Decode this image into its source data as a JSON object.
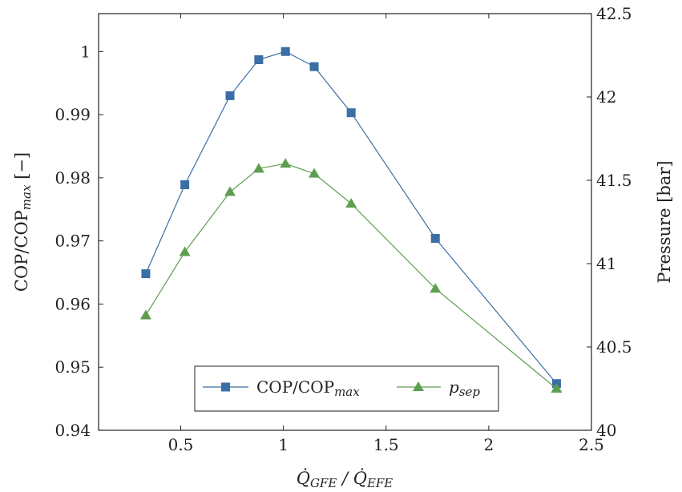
{
  "chart_data": {
    "type": "line",
    "xlabel": {
      "pre": "Q̇",
      "sub1": "GFE",
      "mid": " / Q̇",
      "sub2": "EFE"
    },
    "ylabel_left": {
      "main": "COP/COP",
      "sub": "max",
      "unit": " [−]"
    },
    "ylabel_right": "Pressure [bar]",
    "xlim": [
      0.1,
      2.5
    ],
    "ylim_left": [
      0.94,
      1.006
    ],
    "ylim_right": [
      40,
      42.5
    ],
    "x_ticks": [
      0.5,
      1,
      1.5,
      2,
      2.5
    ],
    "x_tick_labels": [
      "0.5",
      "1",
      "1.5",
      "2",
      "2.5"
    ],
    "y_left_ticks": [
      0.94,
      0.95,
      0.96,
      0.97,
      0.98,
      0.99,
      1.0
    ],
    "y_left_tick_labels": [
      "0.94",
      "0.95",
      "0.96",
      "0.97",
      "0.98",
      "0.99",
      "1"
    ],
    "y_right_ticks": [
      40,
      40.5,
      41,
      41.5,
      42,
      42.5
    ],
    "y_right_tick_labels": [
      "40",
      "40.5",
      "41",
      "41.5",
      "42",
      "42.5"
    ],
    "grid": false,
    "legend_position": "bottom-center",
    "series": [
      {
        "name": "COP/COP",
        "name_sub": "max",
        "axis": "left",
        "color": "#3b6ea5",
        "marker": "square",
        "x": [
          0.33,
          0.52,
          0.74,
          0.88,
          1.01,
          1.15,
          1.33,
          1.74,
          2.33
        ],
        "y": [
          0.9648,
          0.9789,
          0.993,
          0.9987,
          1.0,
          0.9976,
          0.9903,
          0.9704,
          0.9474
        ]
      },
      {
        "name": "p",
        "name_sub": "sep",
        "name_italic": true,
        "axis": "right",
        "color": "#5e9e50",
        "marker": "triangle",
        "x": [
          0.33,
          0.52,
          0.74,
          0.88,
          1.01,
          1.15,
          1.33,
          1.74,
          2.33
        ],
        "y": [
          40.69,
          41.07,
          41.43,
          41.57,
          41.6,
          41.54,
          41.36,
          40.85,
          40.25
        ]
      }
    ]
  }
}
